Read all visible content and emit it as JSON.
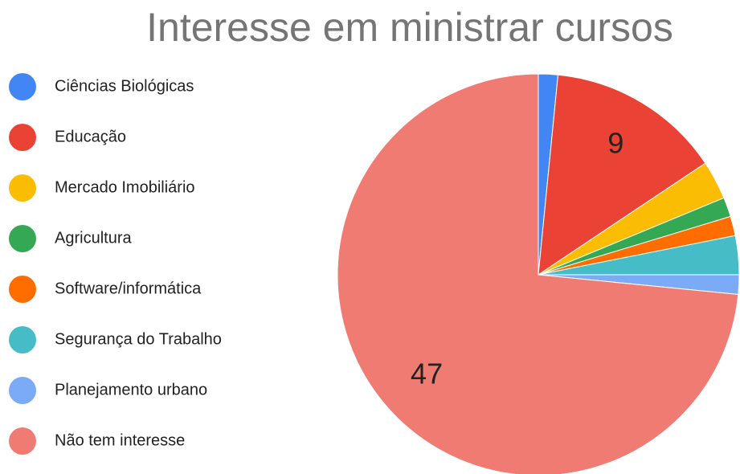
{
  "chart_data": {
    "type": "pie",
    "title": "Interesse em ministrar cursos",
    "categories": [
      "Ciências Biológicas",
      "Educação",
      "Mercado Imobiliário",
      "Agricultura",
      "Software/informática",
      "Segurança do Trabalho",
      "Planejamento urbano",
      "Não tem interesse"
    ],
    "values": [
      1,
      9,
      2,
      1,
      1,
      2,
      1,
      47
    ],
    "colors": [
      "#4285f4",
      "#ea4335",
      "#fbbc04",
      "#34a853",
      "#ff6d01",
      "#46bdc6",
      "#7baaf7",
      "#f07b72"
    ],
    "legend": "left"
  }
}
